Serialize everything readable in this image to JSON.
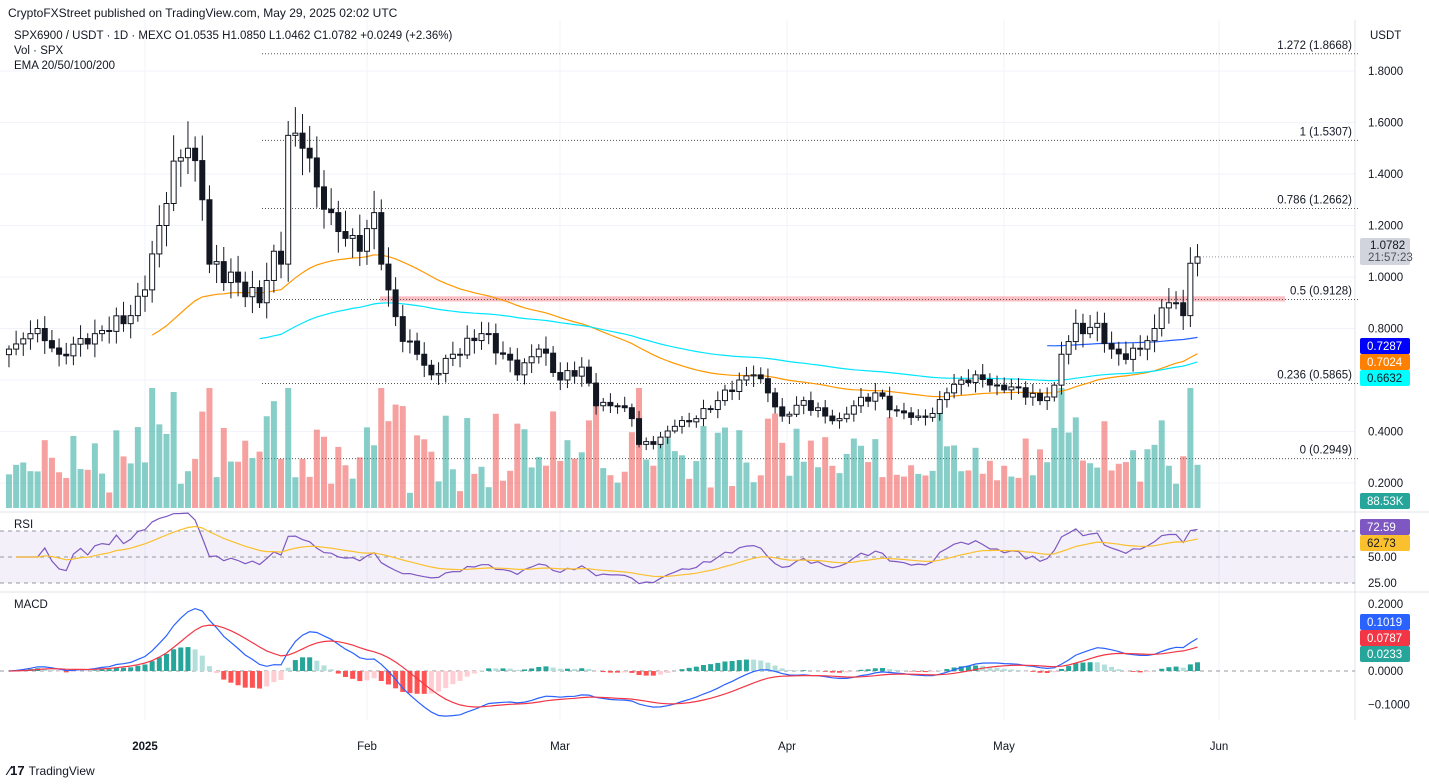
{
  "header": {
    "published": "CryptoFXStreet published on TradingView.com, May 29, 2025 02:02 UTC"
  },
  "legend": {
    "symbol_line": "SPX6900 / USDT · 1D · MEXC  O1.0535  H1.0850  L1.0462  C1.0782  +0.0249 (+2.36%)",
    "volume_line": "Vol · SPX",
    "ema_line": "EMA 20/50/100/200",
    "rsi_label": "RSI",
    "macd_label": "MACD"
  },
  "footer": {
    "brand": "TradingView"
  },
  "colors": {
    "up": "#26a69a",
    "down": "#ef5350",
    "ema50": "#ff9800",
    "ema100": "#00e5ff",
    "ema200": "#2962ff",
    "rsi": "#7e57c2",
    "rsi_ma": "#fbc02d",
    "macd": "#2962ff",
    "signal": "#f23645"
  },
  "chart_data": {
    "type": "candlestick",
    "currency": "USDT",
    "price_ticks": [
      "1.8000",
      "1.6000",
      "1.4000",
      "1.2000",
      "1.0000",
      "0.8000",
      "0.4000",
      "0.2000"
    ],
    "x_ticks": [
      "2025",
      "Feb",
      "Mar",
      "Apr",
      "May",
      "Jun"
    ],
    "last_price": "1.0782",
    "countdown": "21:57:23",
    "ema_values": {
      "ema200": "0.7287",
      "ema50": "0.7024",
      "ema100": "0.6632"
    },
    "volume_last": "88.53K",
    "rsi": {
      "value": "72.59",
      "ma": "62.73",
      "ticks": [
        "50.00",
        "25.00"
      ]
    },
    "macd": {
      "macd": "0.1019",
      "signal": "0.0787",
      "hist": "0.0233",
      "ticks": [
        "0.2000",
        "0.0000",
        "−0.1000"
      ]
    },
    "fib_levels": [
      {
        "label": "1.272 (1.8668)",
        "price": 1.8668
      },
      {
        "label": "1 (1.5307)",
        "price": 1.5307
      },
      {
        "label": "0.786 (1.2662)",
        "price": 1.2662
      },
      {
        "label": "0.5 (0.9128)",
        "price": 0.9128
      },
      {
        "label": "0.236 (0.5865)",
        "price": 0.5865
      },
      {
        "label": "0 (0.2949)",
        "price": 0.2949
      }
    ],
    "resistance_zone": [
      0.905,
      0.925
    ],
    "close_anchors": [
      [
        "2024-12-13",
        0.72
      ],
      [
        "2024-12-17",
        0.8
      ],
      [
        "2024-12-20",
        0.7
      ],
      [
        "2024-12-25",
        0.78
      ],
      [
        "2024-12-30",
        0.85
      ],
      [
        "2025-01-01",
        0.95
      ],
      [
        "2025-01-03",
        1.2
      ],
      [
        "2025-01-05",
        1.45
      ],
      [
        "2025-01-07",
        1.5
      ],
      [
        "2025-01-09",
        1.3
      ],
      [
        "2025-01-10",
        1.05
      ],
      [
        "2025-01-14",
        0.98
      ],
      [
        "2025-01-17",
        0.9
      ],
      [
        "2025-01-19",
        1.1
      ],
      [
        "2025-01-20",
        1.05
      ],
      [
        "2025-01-21",
        1.55
      ],
      [
        "2025-01-23",
        1.5
      ],
      [
        "2025-01-25",
        1.35
      ],
      [
        "2025-01-27",
        1.25
      ],
      [
        "2025-01-29",
        1.15
      ],
      [
        "2025-01-31",
        1.1
      ],
      [
        "2025-02-02",
        1.25
      ],
      [
        "2025-02-03",
        1.05
      ],
      [
        "2025-02-04",
        0.95
      ],
      [
        "2025-02-06",
        0.75
      ],
      [
        "2025-02-08",
        0.7
      ],
      [
        "2025-02-10",
        0.62
      ],
      [
        "2025-02-13",
        0.7
      ],
      [
        "2025-02-17",
        0.78
      ],
      [
        "2025-02-20",
        0.7
      ],
      [
        "2025-02-22",
        0.62
      ],
      [
        "2025-02-25",
        0.72
      ],
      [
        "2025-02-28",
        0.6
      ],
      [
        "2025-03-03",
        0.65
      ],
      [
        "2025-03-05",
        0.5
      ],
      [
        "2025-03-08",
        0.5
      ],
      [
        "2025-03-10",
        0.45
      ],
      [
        "2025-03-11",
        0.35
      ],
      [
        "2025-03-13",
        0.35
      ],
      [
        "2025-03-16",
        0.42
      ],
      [
        "2025-03-19",
        0.45
      ],
      [
        "2025-03-22",
        0.52
      ],
      [
        "2025-03-25",
        0.6
      ],
      [
        "2025-03-27",
        0.62
      ],
      [
        "2025-03-29",
        0.55
      ],
      [
        "2025-03-31",
        0.46
      ],
      [
        "2025-04-03",
        0.52
      ],
      [
        "2025-04-06",
        0.46
      ],
      [
        "2025-04-08",
        0.45
      ],
      [
        "2025-04-10",
        0.5
      ],
      [
        "2025-04-13",
        0.55
      ],
      [
        "2025-04-16",
        0.48
      ],
      [
        "2025-04-19",
        0.46
      ],
      [
        "2025-04-21",
        0.47
      ],
      [
        "2025-04-23",
        0.55
      ],
      [
        "2025-04-25",
        0.6
      ],
      [
        "2025-04-27",
        0.62
      ],
      [
        "2025-04-30",
        0.58
      ],
      [
        "2025-05-03",
        0.57
      ],
      [
        "2025-05-06",
        0.52
      ],
      [
        "2025-05-08",
        0.58
      ],
      [
        "2025-05-09",
        0.7
      ],
      [
        "2025-05-11",
        0.82
      ],
      [
        "2025-05-12",
        0.78
      ],
      [
        "2025-05-14",
        0.82
      ],
      [
        "2025-05-16",
        0.72
      ],
      [
        "2025-05-18",
        0.68
      ],
      [
        "2025-05-20",
        0.72
      ],
      [
        "2025-05-22",
        0.8
      ],
      [
        "2025-05-23",
        0.88
      ],
      [
        "2025-05-25",
        0.9
      ],
      [
        "2025-05-26",
        0.85
      ],
      [
        "2025-05-27",
        1.0533
      ],
      [
        "2025-05-28",
        1.0782
      ]
    ]
  }
}
